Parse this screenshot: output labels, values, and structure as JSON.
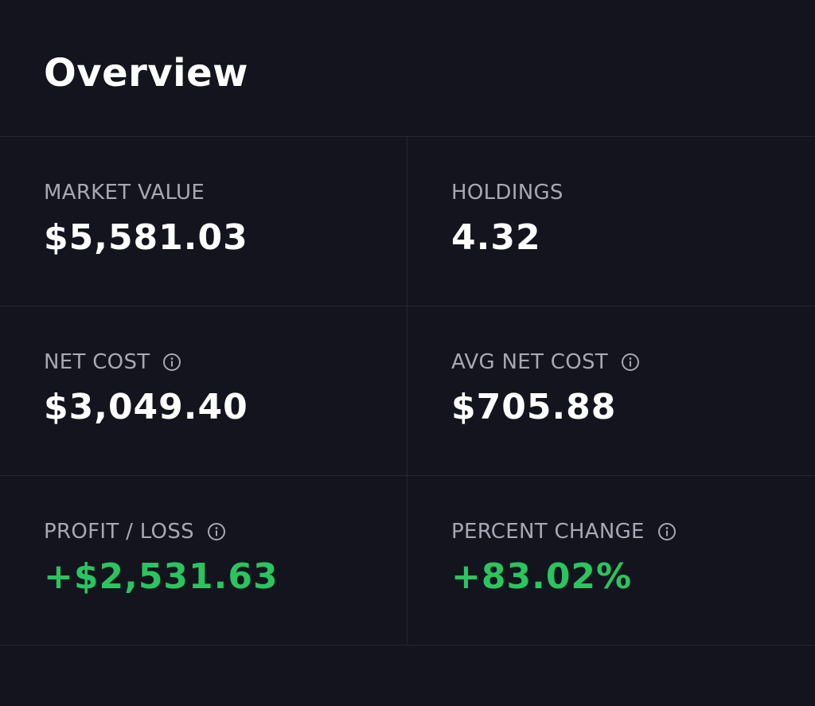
{
  "header": {
    "title": "Overview"
  },
  "stats": {
    "market_value": {
      "label": "MARKET VALUE",
      "value": "$5,581.03"
    },
    "holdings": {
      "label": "HOLDINGS",
      "value": "4.32"
    },
    "net_cost": {
      "label": "NET COST",
      "value": "$3,049.40",
      "icon": "info-icon"
    },
    "avg_net_cost": {
      "label": "AVG NET COST",
      "value": "$705.88",
      "icon": "info-icon"
    },
    "profit_loss": {
      "label": "PROFIT / LOSS",
      "value": "+$2,531.63",
      "icon": "info-icon"
    },
    "percent_change": {
      "label": "PERCENT CHANGE",
      "value": "+83.02%",
      "icon": "info-icon"
    }
  },
  "colors": {
    "background": "#14141f",
    "divider": "#262633",
    "label": "#a8a8b4",
    "value": "#ffffff",
    "positive": "#2ac55f"
  }
}
